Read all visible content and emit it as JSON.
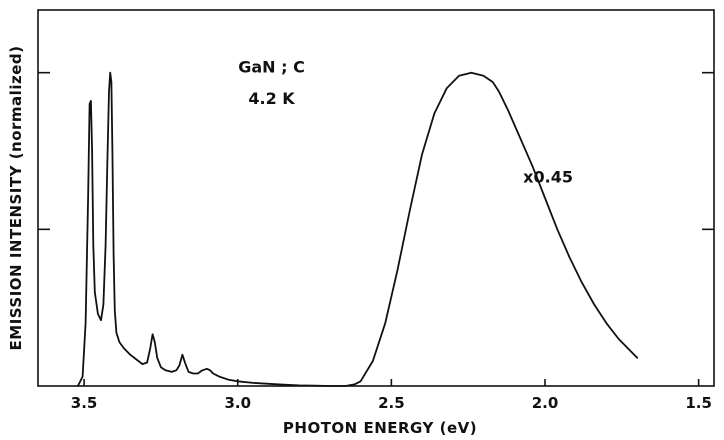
{
  "chart_data": {
    "type": "line",
    "title": "",
    "xlabel": "PHOTON  ENERGY (eV)",
    "ylabel": "EMISSION INTENSITY  (normalized)",
    "xlim": [
      3.65,
      1.45
    ],
    "ylim": [
      0,
      1.2
    ],
    "x_reversed": true,
    "grid": false,
    "legend": "none",
    "xticks": [
      3.5,
      3.0,
      2.5,
      2.0,
      1.5
    ],
    "xtick_labels": [
      "3.5",
      "3.0",
      "2.5",
      "2.0",
      "1.5"
    ],
    "yticks_right": [
      0.5,
      1.0
    ],
    "annotations": [
      {
        "text": "GaN ; C",
        "x": 2.89,
        "y": 1.0
      },
      {
        "text": "4.2 K",
        "x": 2.89,
        "y": 0.9
      },
      {
        "text": "x0.45",
        "x": 1.99,
        "y": 0.65
      }
    ],
    "series": [
      {
        "x": [
          3.52,
          3.505,
          3.495,
          3.487,
          3.482,
          3.478,
          3.474,
          3.47,
          3.465,
          3.455,
          3.445,
          3.437,
          3.43,
          3.424,
          3.419,
          3.415,
          3.411,
          3.408,
          3.404,
          3.4,
          3.395,
          3.385,
          3.37,
          3.35,
          3.33,
          3.31,
          3.295,
          3.285,
          3.277,
          3.27,
          3.262,
          3.25,
          3.235,
          3.215,
          3.2,
          3.19,
          3.18,
          3.17,
          3.16,
          3.145,
          3.13,
          3.115,
          3.1,
          3.09,
          3.08,
          3.06,
          3.03,
          3.0,
          2.95,
          2.9,
          2.85,
          2.8,
          2.75,
          2.7,
          2.65,
          2.62,
          2.6,
          2.56,
          2.52,
          2.48,
          2.44,
          2.4,
          2.36,
          2.32,
          2.28,
          2.24,
          2.2,
          2.17,
          2.15,
          2.12,
          2.08,
          2.04,
          2.0,
          1.96,
          1.92,
          1.88,
          1.84,
          1.8,
          1.76,
          1.72,
          1.7
        ],
        "values": [
          0,
          0.03,
          0.2,
          0.6,
          0.9,
          0.91,
          0.75,
          0.45,
          0.3,
          0.23,
          0.21,
          0.26,
          0.45,
          0.72,
          0.94,
          1.0,
          0.97,
          0.75,
          0.42,
          0.24,
          0.17,
          0.14,
          0.12,
          0.1,
          0.085,
          0.07,
          0.075,
          0.12,
          0.165,
          0.14,
          0.09,
          0.06,
          0.05,
          0.045,
          0.05,
          0.065,
          0.1,
          0.07,
          0.045,
          0.04,
          0.04,
          0.05,
          0.055,
          0.05,
          0.04,
          0.03,
          0.02,
          0.015,
          0.01,
          0.007,
          0.004,
          0.002,
          0.001,
          0.0,
          0.0,
          0.005,
          0.015,
          0.08,
          0.2,
          0.37,
          0.56,
          0.74,
          0.87,
          0.95,
          0.99,
          1.0,
          0.99,
          0.97,
          0.94,
          0.88,
          0.79,
          0.7,
          0.6,
          0.5,
          0.41,
          0.33,
          0.26,
          0.2,
          0.15,
          0.11,
          0.09
        ]
      }
    ]
  }
}
